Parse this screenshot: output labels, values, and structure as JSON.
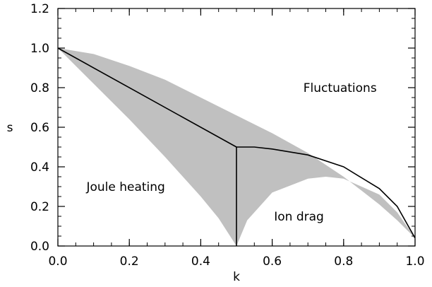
{
  "chart_data": {
    "type": "area",
    "xlabel": "k",
    "ylabel": "s",
    "xlim": [
      0.0,
      1.0
    ],
    "ylim": [
      0.0,
      1.2
    ],
    "x_ticks": [
      "0.0",
      "0.2",
      "0.4",
      "0.6",
      "0.8",
      "1.0"
    ],
    "y_ticks": [
      "0.0",
      "0.2",
      "0.4",
      "0.6",
      "0.8",
      "1.0",
      "1.2"
    ],
    "fill_color": "#c0c0c0",
    "line_color": "#000000",
    "shaded_region": {
      "upper_boundary": {
        "x": [
          0.0,
          0.1,
          0.2,
          0.3,
          0.4,
          0.5,
          0.6,
          0.7,
          0.8,
          0.9,
          0.95,
          1.0
        ],
        "y": [
          1.0,
          0.97,
          0.91,
          0.84,
          0.75,
          0.66,
          0.57,
          0.47,
          0.35,
          0.21,
          0.13,
          0.04
        ]
      },
      "lower_left_boundary": {
        "x": [
          0.0,
          0.1,
          0.2,
          0.3,
          0.4,
          0.45,
          0.5
        ],
        "y": [
          1.0,
          0.82,
          0.64,
          0.45,
          0.25,
          0.14,
          0.0
        ]
      },
      "lower_right_boundary": {
        "x": [
          0.5,
          0.53,
          0.6,
          0.7,
          0.75,
          0.8,
          0.9,
          0.95,
          1.0
        ],
        "y": [
          0.0,
          0.13,
          0.27,
          0.34,
          0.35,
          0.34,
          0.26,
          0.17,
          0.04
        ]
      }
    },
    "lines": [
      {
        "x": [
          0.0,
          0.5
        ],
        "y": [
          1.0,
          0.5
        ]
      },
      {
        "x": [
          0.5,
          0.5
        ],
        "y": [
          0.0,
          0.5
        ]
      },
      {
        "x": [
          0.5,
          0.55,
          0.6,
          0.7,
          0.8,
          0.9,
          0.95,
          1.0
        ],
        "y": [
          0.5,
          0.5,
          0.49,
          0.46,
          0.4,
          0.29,
          0.2,
          0.04
        ]
      }
    ],
    "annotations": [
      {
        "text": "Fluctuations",
        "x": 0.79,
        "y": 0.8
      },
      {
        "text": "Joule heating",
        "x": 0.19,
        "y": 0.3
      },
      {
        "text": "Ion drag",
        "x": 0.675,
        "y": 0.15
      }
    ]
  }
}
